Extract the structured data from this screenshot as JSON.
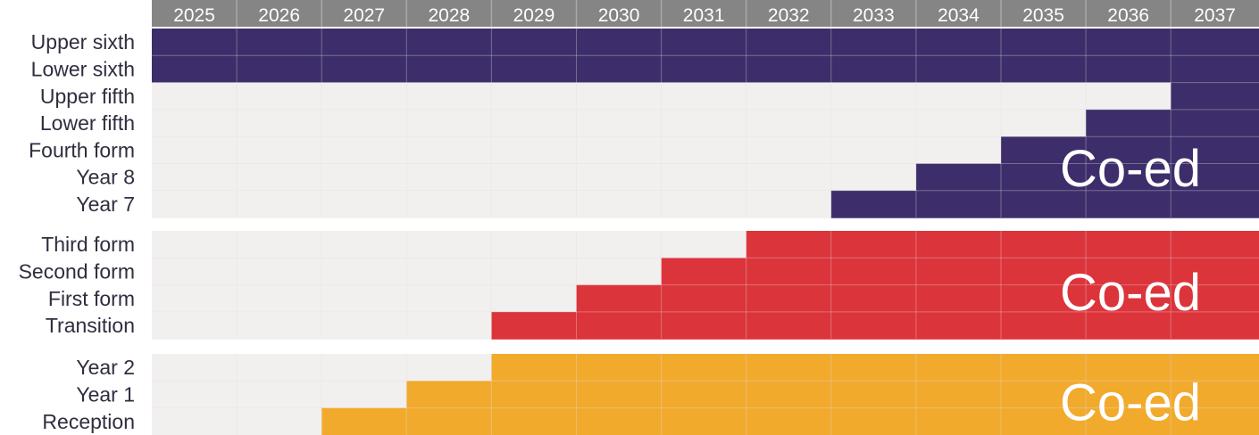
{
  "colors": {
    "header": "#858585",
    "background_cell": "#f2efef",
    "grid_line": "#e4e0e0",
    "senior": "#3d2e6b",
    "middle": "#dc343b",
    "junior": "#f2aa2d",
    "label_text": "#2e2e3f",
    "year_text": "#ffffff"
  },
  "chart_data": {
    "type": "table",
    "years": [
      "2025",
      "2026",
      "2027",
      "2028",
      "2029",
      "2030",
      "2031",
      "2032",
      "2033",
      "2034",
      "2035",
      "2036",
      "2037"
    ],
    "groups": [
      {
        "id": "senior",
        "label": "Co-ed",
        "rows": [
          {
            "label": "Upper sixth",
            "coed_from": "2025"
          },
          {
            "label": "Lower sixth",
            "coed_from": "2025"
          },
          {
            "label": "Upper fifth",
            "coed_from": "2037"
          },
          {
            "label": "Lower fifth",
            "coed_from": "2036"
          },
          {
            "label": "Fourth form",
            "coed_from": "2035"
          },
          {
            "label": "Year 8",
            "coed_from": "2034"
          },
          {
            "label": "Year 7",
            "coed_from": "2033"
          }
        ]
      },
      {
        "id": "middle",
        "label": "Co-ed",
        "rows": [
          {
            "label": "Third form",
            "coed_from": "2032"
          },
          {
            "label": "Second form",
            "coed_from": "2031"
          },
          {
            "label": "First form",
            "coed_from": "2030"
          },
          {
            "label": "Transition",
            "coed_from": "2029"
          }
        ]
      },
      {
        "id": "junior",
        "label": "Co-ed",
        "rows": [
          {
            "label": "Year 2",
            "coed_from": "2029"
          },
          {
            "label": "Year 1",
            "coed_from": "2028"
          },
          {
            "label": "Reception",
            "coed_from": "2027"
          }
        ]
      }
    ]
  }
}
